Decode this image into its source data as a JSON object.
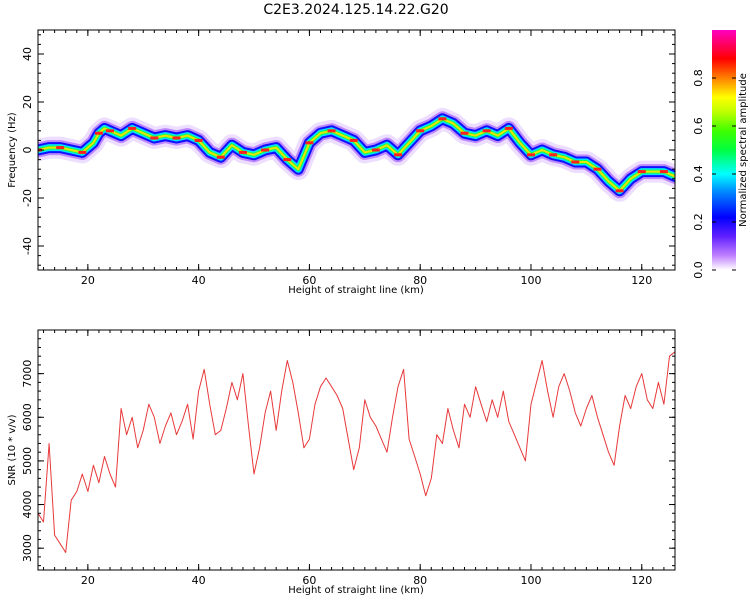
{
  "title": "C2E3.2024.125.14.22.G20",
  "chart_data": [
    {
      "type": "heatmap",
      "xlabel": "Height of straight line (km)",
      "ylabel": "Frequency (Hz)",
      "xlim": [
        11,
        126
      ],
      "ylim": [
        -50,
        50
      ],
      "xticks": [
        20,
        40,
        60,
        80,
        100,
        120
      ],
      "yticks": [
        -40,
        -20,
        0,
        20,
        40
      ],
      "colorbar": {
        "label": "Normalized spectral amplitude",
        "range": [
          0,
          1
        ],
        "ticks": [
          0.0,
          0.2,
          0.4,
          0.6,
          0.8
        ],
        "colormap": "gist_ncar-like: #ffffff, #c080ff, #0000ff, #00ffff, #00ff00, #ffff00, #ff8000, #ff0000, #ff00c0"
      },
      "ridge": {
        "x": [
          11,
          13,
          15,
          17,
          19,
          21,
          22,
          23,
          24,
          26,
          28,
          30,
          32,
          34,
          36,
          38,
          40,
          42,
          44,
          46,
          48,
          50,
          52,
          54,
          56,
          58,
          60,
          62,
          64,
          66,
          68,
          70,
          72,
          74,
          76,
          78,
          80,
          82,
          84,
          86,
          88,
          90,
          92,
          94,
          96,
          98,
          100,
          102,
          104,
          106,
          108,
          110,
          112,
          114,
          116,
          118,
          120,
          122,
          124,
          126
        ],
        "y": [
          0,
          1,
          1,
          0,
          -1,
          3,
          7,
          9,
          8,
          6,
          9,
          7,
          5,
          6,
          5,
          6,
          4,
          -1,
          -3,
          2,
          -1,
          -2,
          0,
          1,
          -4,
          -8,
          3,
          7,
          8,
          6,
          4,
          -1,
          0,
          2,
          -2,
          3,
          8,
          10,
          13,
          11,
          7,
          6,
          8,
          6,
          9,
          3,
          -2,
          0,
          -2,
          -3,
          -5,
          -5,
          -8,
          -13,
          -17,
          -12,
          -9,
          -9,
          -9,
          -11
        ],
        "peak_amplitude": 1.0
      }
    },
    {
      "type": "line",
      "xlabel": "Height of straight line (km)",
      "ylabel": "SNR (10 * v/v)",
      "xlim": [
        11,
        126
      ],
      "ylim": [
        2500,
        8000
      ],
      "xticks": [
        20,
        40,
        60,
        80,
        100,
        120
      ],
      "yticks": [
        3000,
        4000,
        5000,
        6000,
        7000
      ],
      "series": [
        {
          "color": "#e8393a",
          "x": [
            11,
            12,
            13,
            14,
            15,
            16,
            17,
            18,
            19,
            20,
            21,
            22,
            23,
            24,
            25,
            26,
            27,
            28,
            29,
            30,
            31,
            32,
            33,
            34,
            35,
            36,
            37,
            38,
            39,
            40,
            41,
            42,
            43,
            44,
            45,
            46,
            47,
            48,
            49,
            50,
            51,
            52,
            53,
            54,
            55,
            56,
            57,
            58,
            59,
            60,
            61,
            62,
            63,
            64,
            65,
            66,
            67,
            68,
            69,
            70,
            71,
            72,
            73,
            74,
            75,
            76,
            77,
            78,
            79,
            80,
            81,
            82,
            83,
            84,
            85,
            86,
            87,
            88,
            89,
            90,
            91,
            92,
            93,
            94,
            95,
            96,
            97,
            98,
            99,
            100,
            101,
            102,
            103,
            104,
            105,
            106,
            107,
            108,
            109,
            110,
            111,
            112,
            113,
            114,
            115,
            116,
            117,
            118,
            119,
            120,
            121,
            122,
            123,
            124,
            125,
            126
          ],
          "values": [
            3800,
            3600,
            5400,
            3300,
            3100,
            2900,
            4100,
            4300,
            4700,
            4300,
            4900,
            4500,
            5100,
            4700,
            4400,
            6200,
            5600,
            6000,
            5300,
            5700,
            6300,
            6000,
            5400,
            5800,
            6100,
            5600,
            5900,
            6300,
            5500,
            6600,
            7100,
            6300,
            5600,
            5700,
            6200,
            6800,
            6400,
            7000,
            5800,
            4700,
            5300,
            6100,
            6600,
            5700,
            6600,
            7300,
            6800,
            6100,
            5300,
            5500,
            6300,
            6700,
            6900,
            6700,
            6500,
            6200,
            5500,
            4800,
            5300,
            6400,
            6000,
            5800,
            5500,
            5200,
            6000,
            6700,
            7100,
            5500,
            5100,
            4700,
            4200,
            4600,
            5600,
            5400,
            6200,
            5700,
            5300,
            6300,
            6000,
            6700,
            6300,
            5900,
            6400,
            6000,
            6600,
            5900,
            5600,
            5300,
            5000,
            6300,
            6800,
            7300,
            6600,
            6000,
            6700,
            7000,
            6600,
            6100,
            5800,
            6200,
            6500,
            6000,
            5600,
            5200,
            4900,
            5800,
            6500,
            6200,
            6700,
            7000,
            6400,
            6200,
            6800,
            6300,
            7400,
            7500
          ]
        }
      ]
    }
  ]
}
